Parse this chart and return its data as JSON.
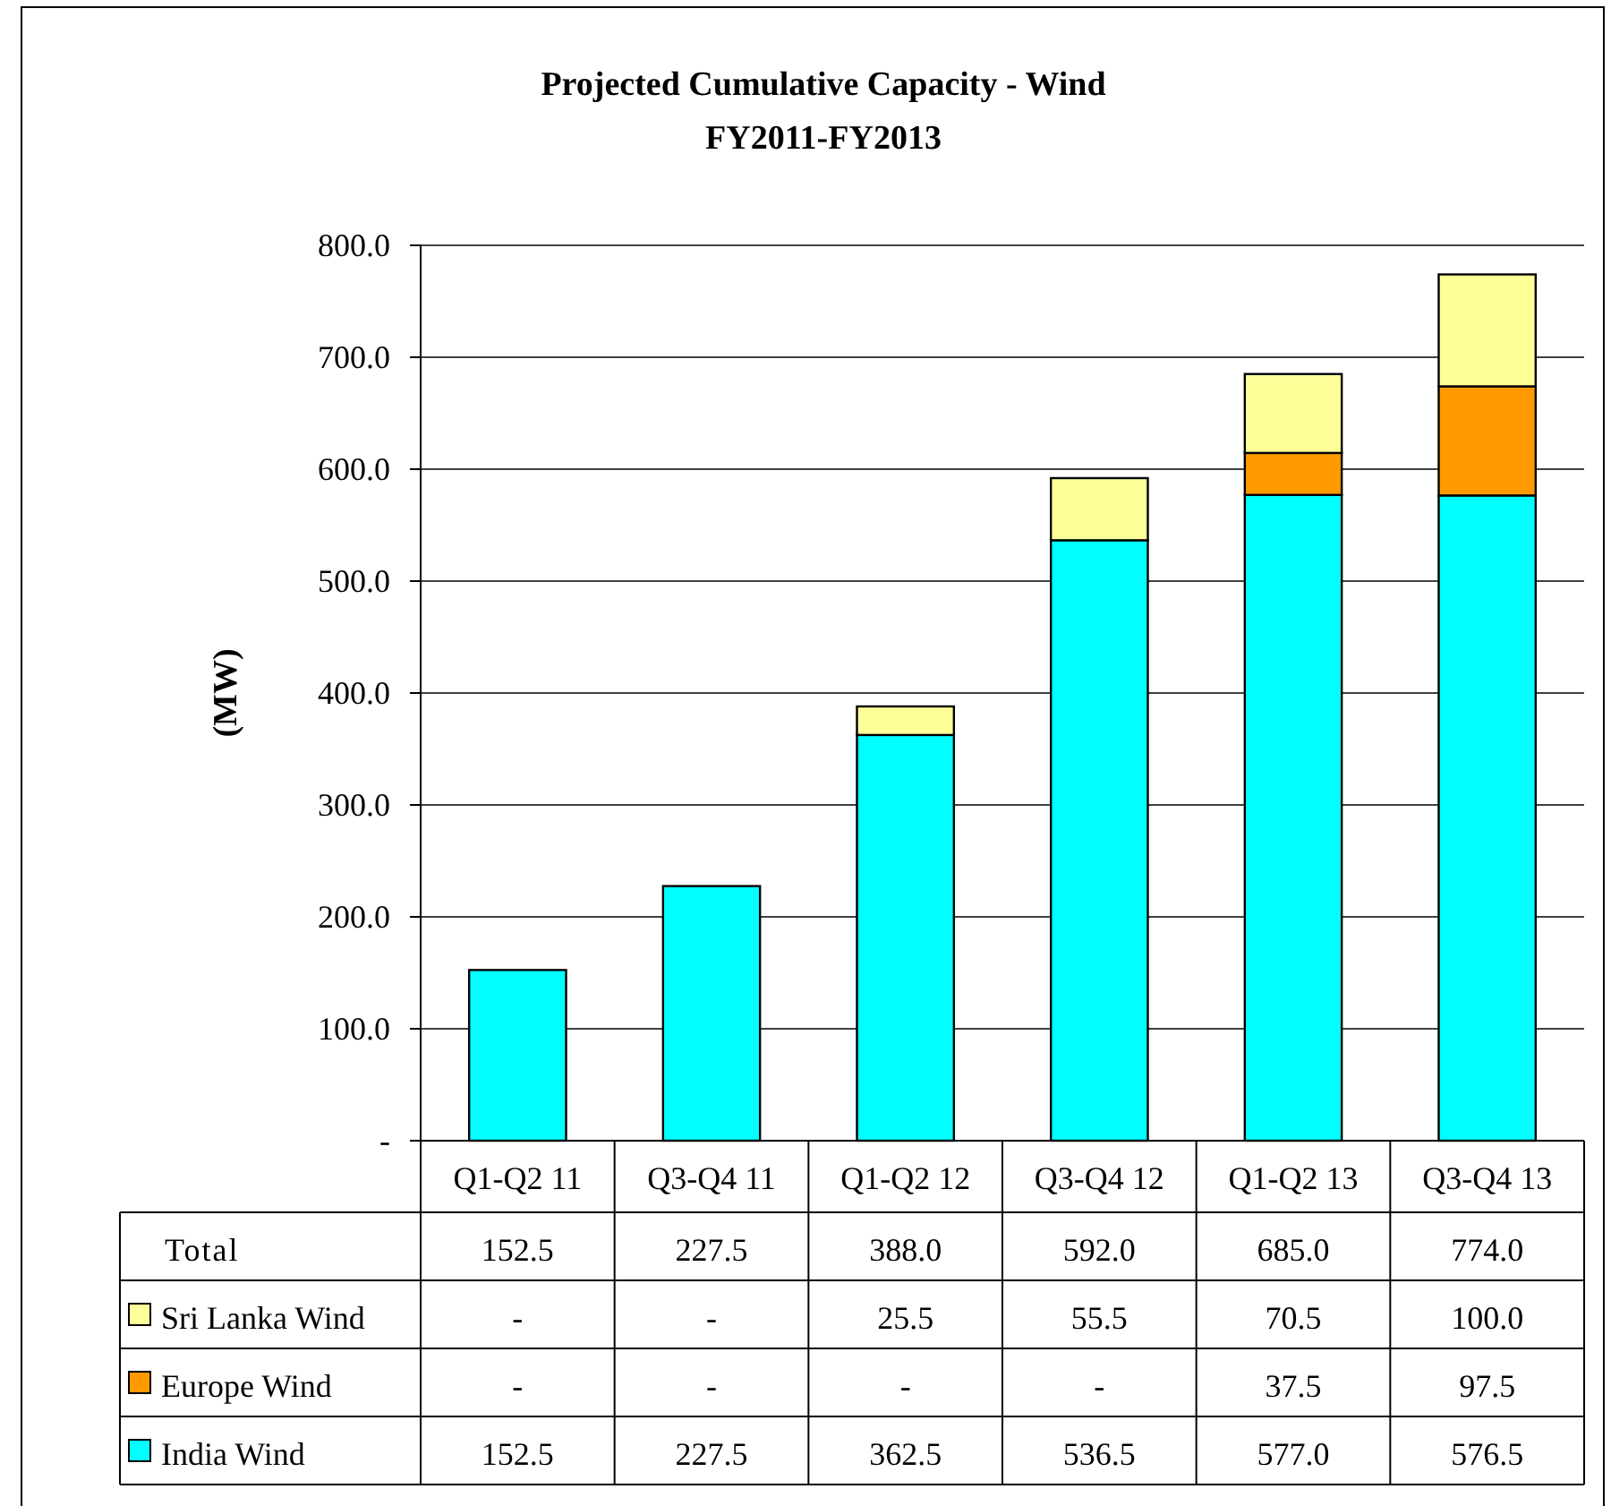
{
  "chart_data": {
    "type": "bar",
    "stacked": true,
    "title": "Projected Cumulative Capacity - Wind",
    "subtitle": "FY2011-FY2013",
    "ylabel": "(MW)",
    "categories": [
      "Q1-Q2 11",
      "Q3-Q4 11",
      "Q1-Q2 12",
      "Q3-Q4 12",
      "Q1-Q2 13",
      "Q3-Q4 13"
    ],
    "series": [
      {
        "name": "India Wind",
        "color": "#00ffff",
        "values": [
          152.5,
          227.5,
          362.5,
          536.5,
          577.0,
          576.5
        ],
        "value_labels": [
          "152.5",
          "227.5",
          "362.5",
          "536.5",
          "577.0",
          "576.5"
        ]
      },
      {
        "name": "Europe Wind",
        "color": "#ff9900",
        "values": [
          null,
          null,
          null,
          null,
          37.5,
          97.5
        ],
        "value_labels": [
          "-",
          "-",
          "-",
          "-",
          "37.5",
          "97.5"
        ]
      },
      {
        "name": "Sri Lanka Wind",
        "color": "#ffff99",
        "values": [
          null,
          null,
          25.5,
          55.5,
          70.5,
          100.0
        ],
        "value_labels": [
          "-",
          "-",
          "25.5",
          "55.5",
          "70.5",
          "100.0"
        ]
      }
    ],
    "totals": [
      "152.5",
      "227.5",
      "388.0",
      "592.0",
      "685.0",
      "774.0"
    ],
    "annotations": [
      "Total"
    ],
    "ylim": [
      0,
      800
    ],
    "yticks": [
      {
        "value": 0,
        "label": "-"
      },
      {
        "value": 100,
        "label": "100.0"
      },
      {
        "value": 200,
        "label": "200.0"
      },
      {
        "value": 300,
        "label": "300.0"
      },
      {
        "value": 400,
        "label": "400.0"
      },
      {
        "value": 500,
        "label": "500.0"
      },
      {
        "value": 600,
        "label": "600.0"
      },
      {
        "value": 700,
        "label": "700.0"
      },
      {
        "value": 800,
        "label": "800.0"
      }
    ],
    "grid": "y",
    "legend": "bottom"
  }
}
